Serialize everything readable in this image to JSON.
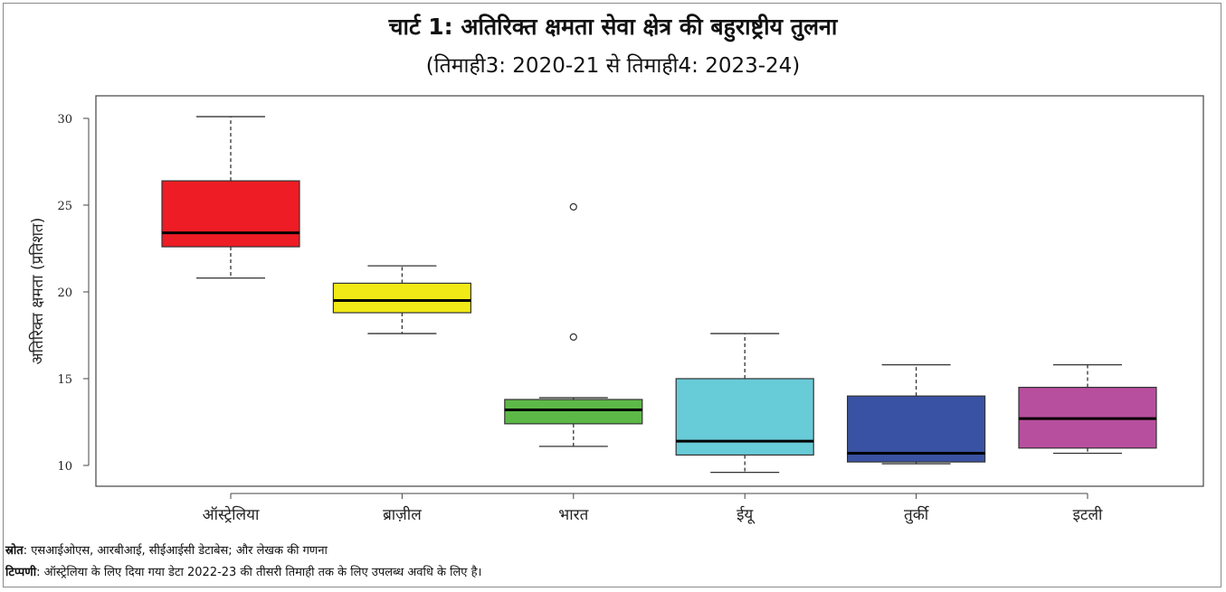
{
  "chart_data": {
    "type": "boxplot",
    "title": "चार्ट 1: अतिरिक्त क्षमता सेवा क्षेत्र की बहुराष्ट्रीय तुलना",
    "subtitle": "(तिमाही3: 2020-21 से तिमाही4: 2023-24)",
    "xlabel": "",
    "ylabel": "अतिरिक्त क्षमता (प्रतिशत)",
    "ylim": [
      8.8,
      31.3
    ],
    "yticks": [
      10,
      15,
      20,
      25,
      30
    ],
    "grid": false,
    "categories": [
      "ऑस्ट्रेलिया",
      "ब्राज़ील",
      "भारत",
      "ईयू",
      "तुर्की",
      "इटली"
    ],
    "boxes": [
      {
        "category": "ऑस्ट्रेलिया",
        "whisker_low": 20.8,
        "q1": 22.6,
        "median": 23.4,
        "q3": 26.4,
        "whisker_high": 30.1,
        "outliers": [],
        "color": "#ee1c24"
      },
      {
        "category": "ब्राज़ील",
        "whisker_low": 17.6,
        "q1": 18.8,
        "median": 19.5,
        "q3": 20.5,
        "whisker_high": 21.5,
        "outliers": [],
        "color": "#f2ea16"
      },
      {
        "category": "भारत",
        "whisker_low": 11.1,
        "q1": 12.4,
        "median": 13.2,
        "q3": 13.8,
        "whisker_high": 13.9,
        "outliers": [
          17.4,
          24.9
        ],
        "color": "#5db947"
      },
      {
        "category": "ईयू",
        "whisker_low": 9.6,
        "q1": 10.6,
        "median": 11.4,
        "q3": 15.0,
        "whisker_high": 17.6,
        "outliers": [],
        "color": "#68cbd8"
      },
      {
        "category": "तुर्की",
        "whisker_low": 10.1,
        "q1": 10.2,
        "median": 10.7,
        "q3": 14.0,
        "whisker_high": 15.8,
        "outliers": [],
        "color": "#3a52a3"
      },
      {
        "category": "इटली",
        "whisker_low": 10.7,
        "q1": 11.0,
        "median": 12.7,
        "q3": 14.5,
        "whisker_high": 15.8,
        "outliers": [],
        "color": "#b84f9e"
      }
    ]
  },
  "footer": {
    "source_label": "स्रोत",
    "source_text": ": एसआईओएस, आरबीआई, सीईआईसी डेटाबेस; और लेखक की गणना",
    "note_label": "टिप्पणी",
    "note_text": ": ऑस्ट्रेलिया के लिए दिया गया डेटा 2022-23 की तीसरी तिमाही तक के लिए उपलब्ध अवधि के लिए है।"
  }
}
